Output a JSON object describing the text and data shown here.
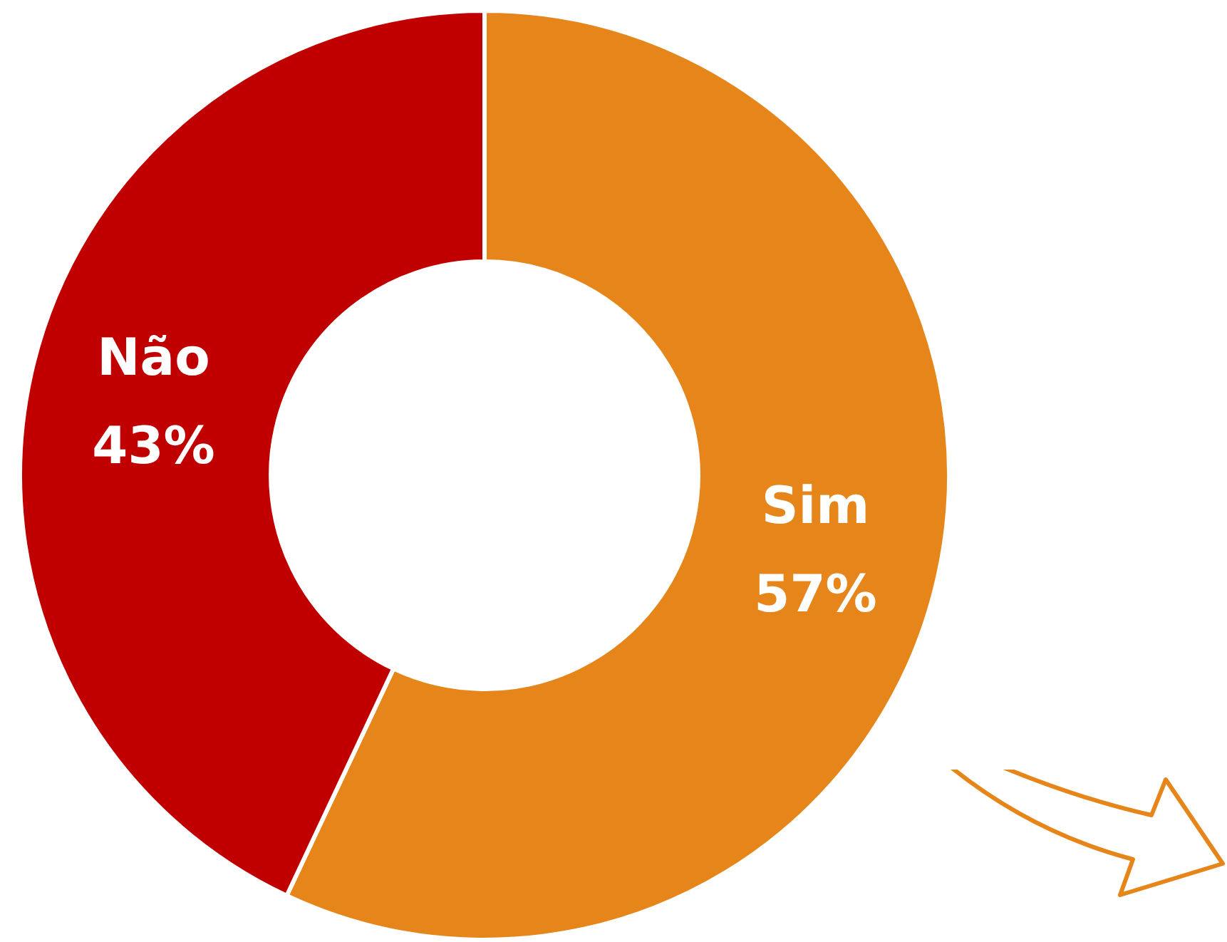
{
  "chart_data": {
    "type": "donut",
    "categories": [
      "Sim",
      "Não"
    ],
    "values": [
      57,
      43
    ],
    "colors": [
      "#e6861a",
      "#c00000"
    ],
    "value_labels": [
      "57%",
      "43%"
    ],
    "legend": false
  }
}
